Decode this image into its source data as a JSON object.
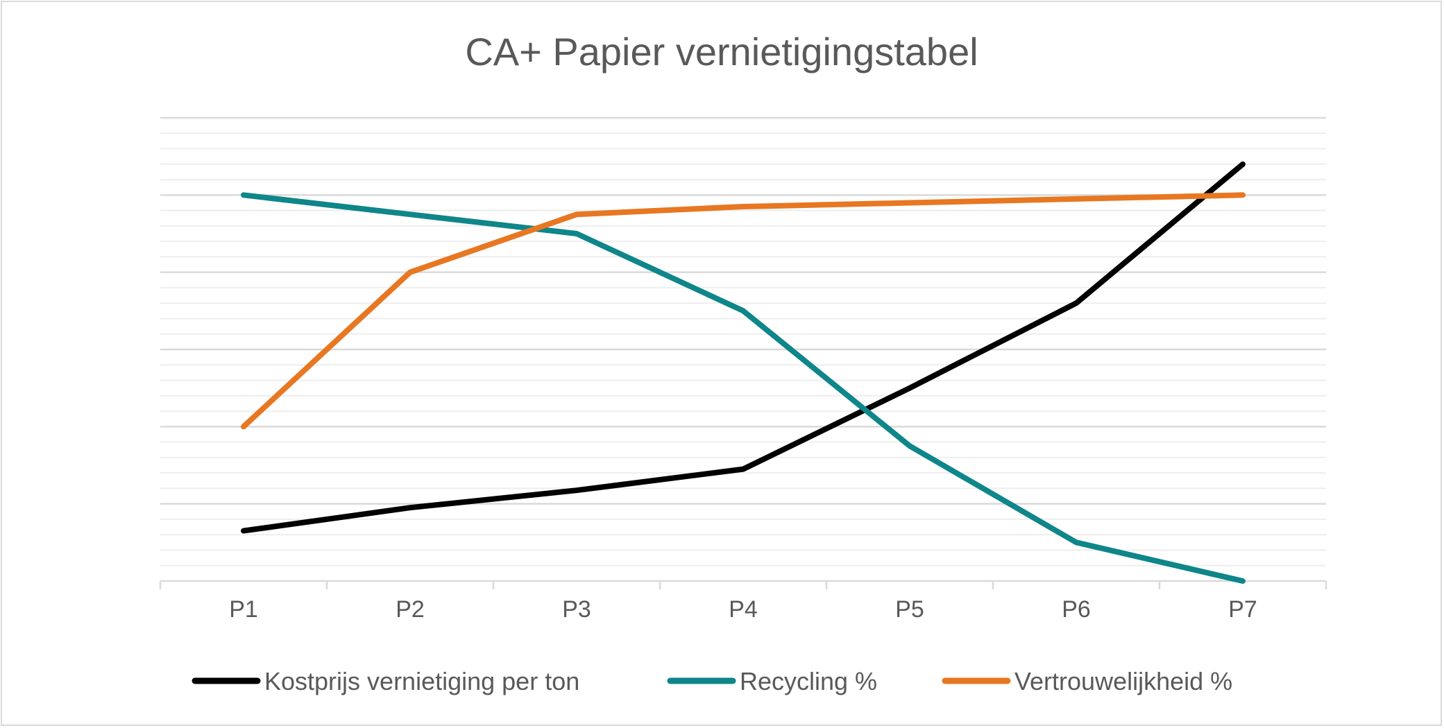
{
  "chart_data": {
    "type": "line",
    "title": "CA+ Papier vernietigingstabel",
    "categories": [
      "P1",
      "P2",
      "P3",
      "P4",
      "P5",
      "P6",
      "P7"
    ],
    "ylim": [
      0,
      120
    ],
    "grid": true,
    "legend_position": "bottom",
    "series": [
      {
        "name": "Kostprijs vernietiging per ton",
        "color": "#000000",
        "values": [
          13,
          19,
          23.5,
          29,
          50,
          72,
          108
        ]
      },
      {
        "name": "Recycling %",
        "color": "#0E868A",
        "values": [
          100,
          95,
          90,
          70,
          35,
          10,
          0
        ]
      },
      {
        "name": "Vertrouwelijkheid %",
        "color": "#E87722",
        "values": [
          40,
          80,
          95,
          97,
          98,
          99,
          100
        ]
      }
    ]
  }
}
